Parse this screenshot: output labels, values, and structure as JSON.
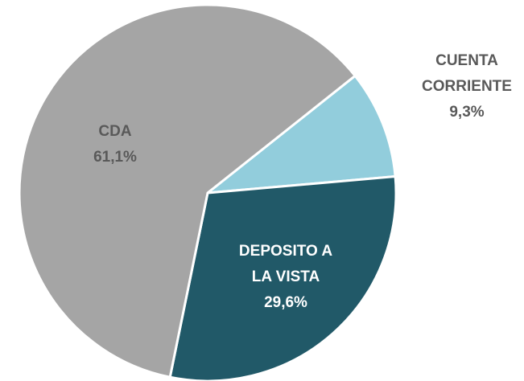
{
  "chart_data": {
    "type": "pie",
    "categories": [
      "CUENTA CORRIENTE",
      "DEPOSITO A LA VISTA",
      "CDA"
    ],
    "values": [
      9.3,
      29.6,
      61.1
    ],
    "value_labels": [
      "9,3%",
      "29,6%",
      "61,1%"
    ],
    "colors": [
      "#92cddc",
      "#215968",
      "#a5a5a5"
    ]
  }
}
